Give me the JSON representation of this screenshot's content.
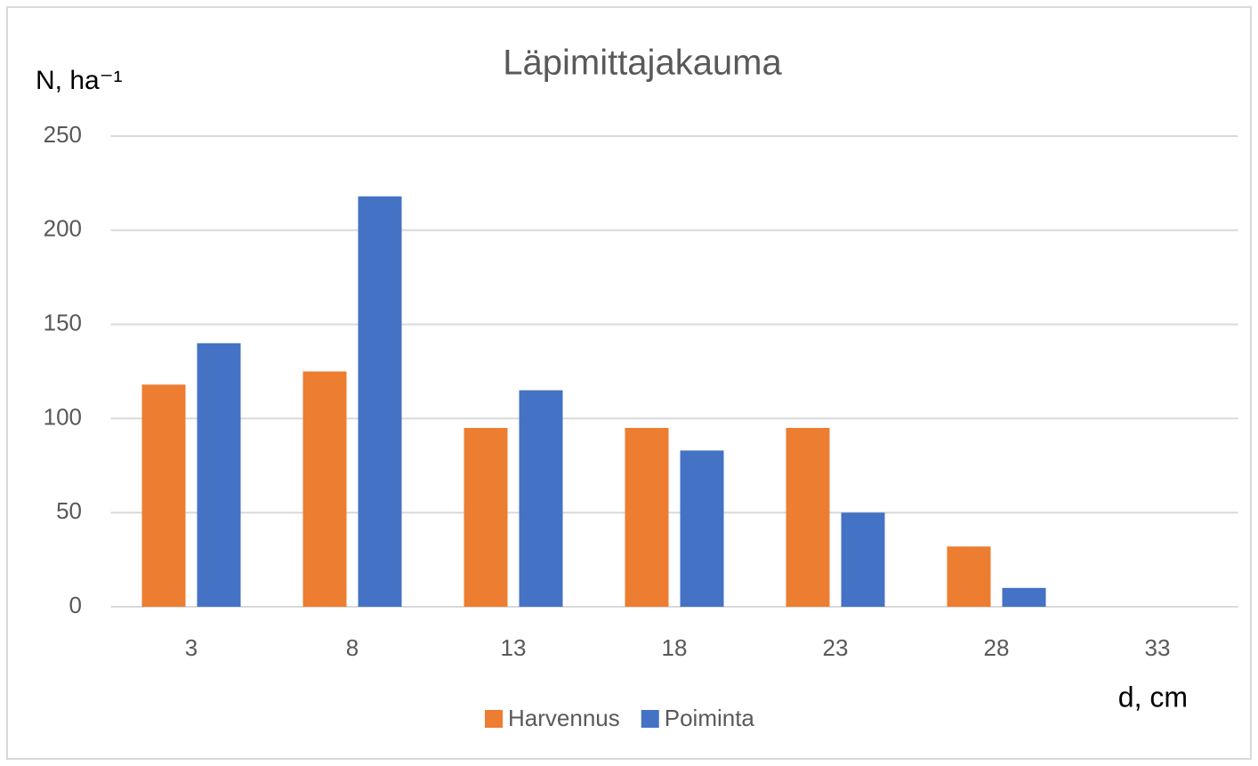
{
  "chart_data": {
    "type": "bar",
    "title": "Läpimittajakauma",
    "y_label": "N, ha⁻¹",
    "x_label": "d, cm",
    "categories": [
      "3",
      "8",
      "13",
      "18",
      "23",
      "28",
      "33"
    ],
    "series": [
      {
        "name": "Harvennus",
        "color": "#ed7d31",
        "values": [
          118,
          125,
          95,
          95,
          95,
          32,
          0
        ]
      },
      {
        "name": "Poiminta",
        "color": "#4472c4",
        "values": [
          140,
          218,
          115,
          83,
          50,
          10,
          0
        ]
      }
    ],
    "ylim": [
      0,
      250
    ],
    "yticks": [
      0,
      50,
      100,
      150,
      200,
      250
    ],
    "grid": true,
    "legend": "bottom"
  }
}
